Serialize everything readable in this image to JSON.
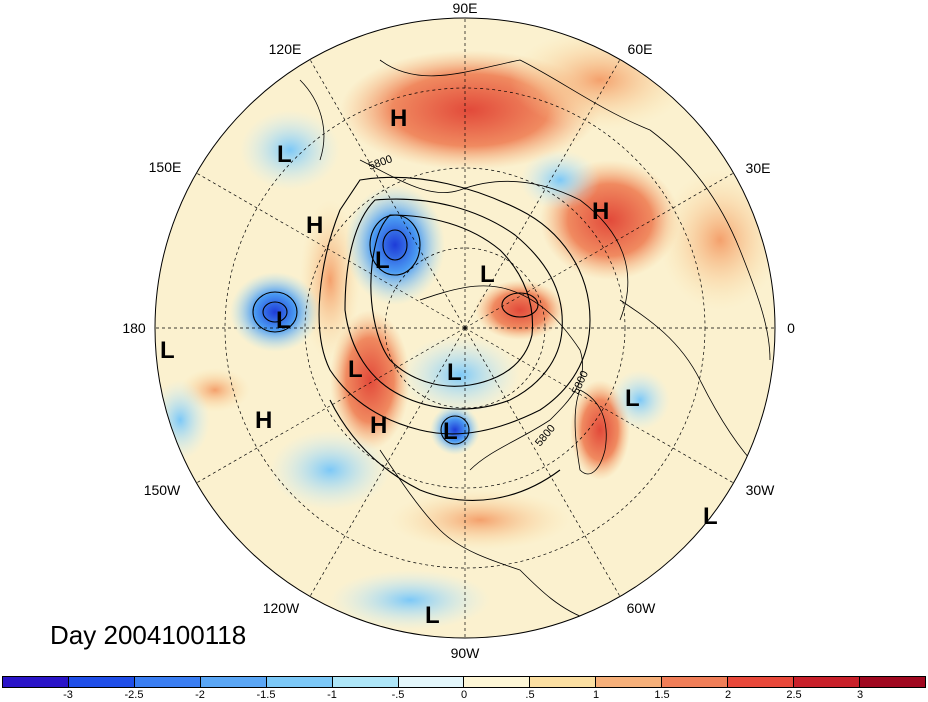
{
  "map": {
    "day_prefix": "Day",
    "day_value": "2004100118",
    "longitude_labels": [
      "90E",
      "60E",
      "30E",
      "0",
      "30W",
      "60W",
      "90W",
      "120W",
      "150W",
      "180",
      "150E",
      "120E"
    ],
    "contour_labels": [
      "5800",
      "5800",
      "5800"
    ],
    "pressure_centers": [
      "H",
      "H",
      "H",
      "H",
      "H",
      "L",
      "L",
      "L",
      "L",
      "L",
      "L",
      "L",
      "L",
      "L",
      "L",
      "L",
      "L"
    ],
    "colorbar": {
      "ticks": [
        "-3",
        "-2.5",
        "-2",
        "-1.5",
        "-1",
        "-.5",
        "0",
        ".5",
        "1",
        "1.5",
        "2",
        "2.5",
        "3"
      ],
      "colors": [
        "#2a14c8",
        "#1f4ee8",
        "#3a7ef2",
        "#5aa6f5",
        "#7cc8f7",
        "#aee6f8",
        "#e3f6fb",
        "#fdf6d6",
        "#fbdfa2",
        "#f6b07a",
        "#f07e58",
        "#e8483a",
        "#c8202a",
        "#a00820"
      ]
    },
    "colors": {
      "background": "#ffffff",
      "contour": "#000000",
      "grid": "#000000"
    }
  }
}
